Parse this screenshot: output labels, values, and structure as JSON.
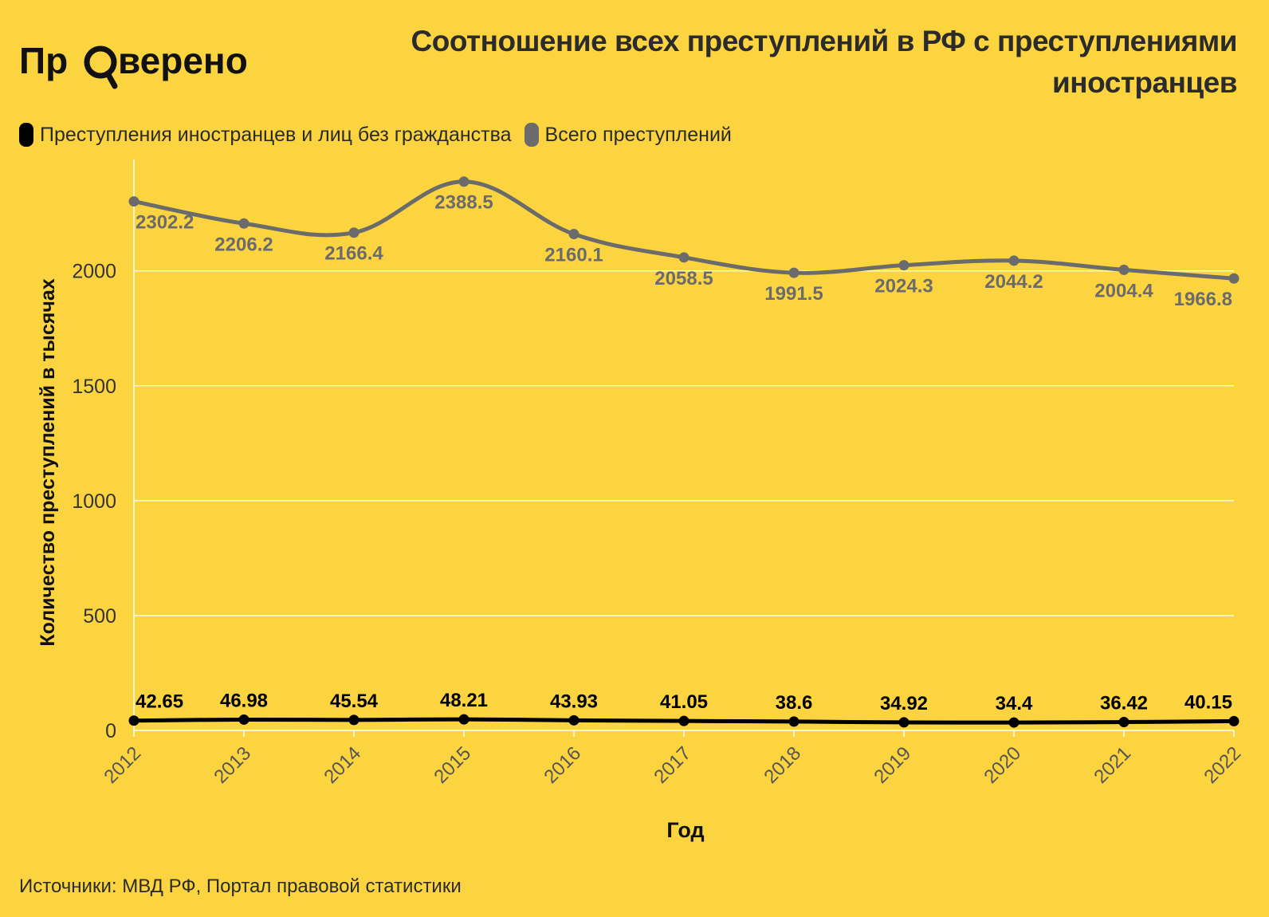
{
  "brand": {
    "name": "Проверено"
  },
  "title": "Соотношение всех преступлений в РФ с преступлениями иностранцев",
  "colors": {
    "background": "#FCD440",
    "foreign": "#000000",
    "total": "#6B6B6B",
    "grid": "#FFFFFF",
    "text": "#2b2b2b"
  },
  "legend": {
    "foreign_label": "Преступления иностранцев и лиц без гражданства",
    "total_label": "Всего преступлений"
  },
  "source": "Источники: МВД РФ, Портал правовой статистики",
  "chart_data": {
    "type": "line",
    "xlabel": "Год",
    "ylabel": "Количество преступлений в тысячах",
    "ylim": [
      0,
      2450
    ],
    "yticks": [
      0,
      500,
      1000,
      1500,
      2000
    ],
    "grid": true,
    "legend_position": "top-left",
    "categories": [
      "2012",
      "2013",
      "2014",
      "2015",
      "2016",
      "2017",
      "2018",
      "2019",
      "2020",
      "2021",
      "2022"
    ],
    "series": [
      {
        "name": "Всего преступлений",
        "key": "total",
        "values": [
          2302.2,
          2206.2,
          2166.4,
          2388.5,
          2160.1,
          2058.5,
          1991.5,
          2024.3,
          2044.2,
          2004.4,
          1966.8
        ],
        "labels": [
          "2302.2",
          "2206.2",
          "2166.4",
          "2388.5",
          "2160.1",
          "2058.5",
          "1991.5",
          "2024.3",
          "2044.2",
          "2004.4",
          "1966.8"
        ]
      },
      {
        "name": "Преступления иностранцев и лиц без гражданства",
        "key": "foreign",
        "values": [
          42.65,
          46.98,
          45.54,
          48.21,
          43.93,
          41.05,
          38.6,
          34.92,
          34.4,
          36.42,
          40.15
        ],
        "labels": [
          "42.65",
          "46.98",
          "45.54",
          "48.21",
          "43.93",
          "41.05",
          "38.6",
          "34.92",
          "34.4",
          "36.42",
          "40.15"
        ]
      }
    ]
  }
}
